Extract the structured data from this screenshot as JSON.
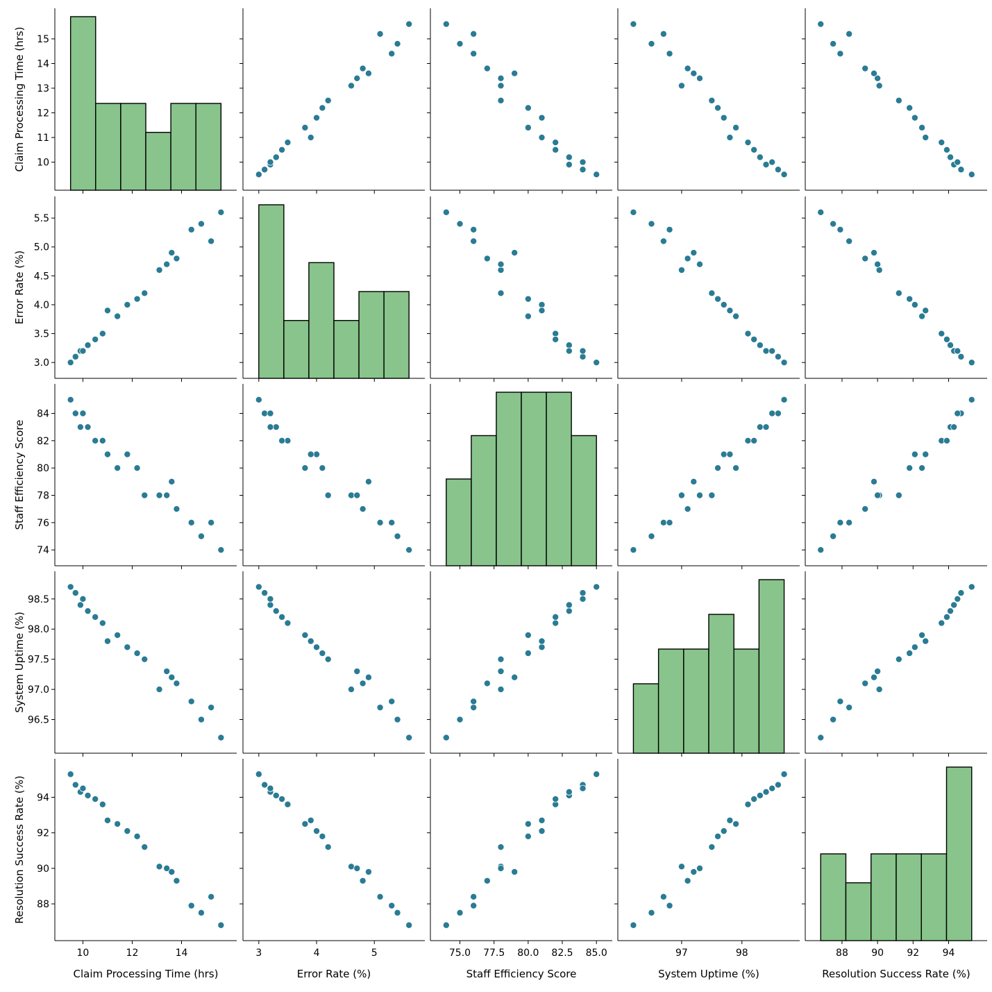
{
  "chart_data": {
    "type": "scatter",
    "subtype": "pairplot",
    "variables": [
      {
        "name": "Claim Processing Time (hrs)",
        "values": [
          15.6,
          14.8,
          15.2,
          14.4,
          13.8,
          13.1,
          13.4,
          12.5,
          13.6,
          12.2,
          11.4,
          11.8,
          11.0,
          10.8,
          10.5,
          10.2,
          9.5,
          9.7,
          9.9,
          10.0
        ],
        "ticks": [
          10,
          12,
          14
        ],
        "range": [
          9.2,
          15.9
        ],
        "tick_labels_y": [
          "10",
          "11",
          "12",
          "13",
          "14",
          "15"
        ],
        "ticks_y": [
          10,
          11,
          12,
          13,
          14,
          15
        ],
        "range_y": [
          9.2,
          15.9
        ]
      },
      {
        "name": "Error Rate (%)",
        "values": [
          5.6,
          5.4,
          5.1,
          5.3,
          4.8,
          4.6,
          4.7,
          4.2,
          4.9,
          4.1,
          3.8,
          4.0,
          3.9,
          3.5,
          3.4,
          3.3,
          3.0,
          3.1,
          3.2,
          3.2
        ],
        "ticks": [
          3,
          4,
          5
        ],
        "range": [
          2.87,
          5.73
        ],
        "ticks_y": [
          3.0,
          3.5,
          4.0,
          4.5,
          5.0,
          5.5
        ],
        "tick_labels_y": [
          "3.0",
          "3.5",
          "4.0",
          "4.5",
          "5.0",
          "5.5"
        ],
        "range_y": [
          2.87,
          5.73
        ]
      },
      {
        "name": "Staff Efficiency Score",
        "values": [
          74,
          75,
          76,
          76,
          77,
          78,
          78,
          78,
          79,
          80,
          80,
          81,
          81,
          82,
          82,
          83,
          85,
          84,
          83,
          84
        ],
        "ticks": [
          75.0,
          77.5,
          80.0,
          82.5,
          85.0
        ],
        "tick_labels_x": [
          "75.0",
          "77.5",
          "80.0",
          "82.5",
          "85.0"
        ],
        "range": [
          73.45,
          85.55
        ],
        "ticks_y": [
          74,
          76,
          78,
          80,
          82,
          84
        ],
        "tick_labels_y": [
          "74",
          "76",
          "78",
          "80",
          "82",
          "84"
        ],
        "range_y": [
          73.45,
          85.55
        ]
      },
      {
        "name": "System Uptime (%)",
        "values": [
          96.2,
          96.5,
          96.7,
          96.8,
          97.1,
          97.0,
          97.3,
          97.5,
          97.2,
          97.6,
          97.9,
          97.7,
          97.8,
          98.1,
          98.2,
          98.3,
          98.7,
          98.6,
          98.4,
          98.5
        ],
        "ticks": [
          97,
          98
        ],
        "range": [
          96.08,
          98.82
        ],
        "ticks_y": [
          96.5,
          97.0,
          97.5,
          98.0,
          98.5
        ],
        "tick_labels_y": [
          "96.5",
          "97.0",
          "97.5",
          "98.0",
          "98.5"
        ],
        "range_y": [
          96.08,
          98.82
        ]
      },
      {
        "name": "Resolution Success Rate (%)",
        "values": [
          86.8,
          87.5,
          88.4,
          87.9,
          89.3,
          90.1,
          90.0,
          91.2,
          89.8,
          91.8,
          92.5,
          92.1,
          92.7,
          93.6,
          93.9,
          94.1,
          95.3,
          94.7,
          94.3,
          94.5
        ],
        "ticks": [
          88,
          90,
          92,
          94
        ],
        "range": [
          86.4,
          95.7
        ],
        "ticks_y": [
          88,
          90,
          92,
          94
        ],
        "tick_labels_y": [
          "88",
          "90",
          "92",
          "94"
        ],
        "range_y": [
          86.4,
          95.7
        ]
      }
    ],
    "diagonal": "histogram",
    "hist_bins": 6,
    "hist_color": "#88c48b",
    "point_color": "#2a7b94",
    "grid": false,
    "legend": "none"
  }
}
